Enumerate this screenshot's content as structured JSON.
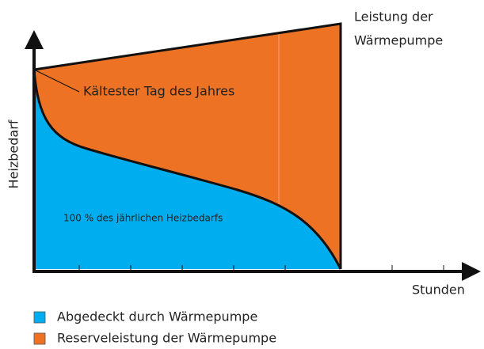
{
  "annotations": {
    "coldest_day": "Kältester Tag des Jahres",
    "capacity_line1": "Leistung der",
    "capacity_line2": "Wärmepumpe",
    "area_label": "100 % des jährlichen Heizbedarfs"
  },
  "axes": {
    "y_label": "Heizbedarf",
    "x_label": "Stunden"
  },
  "legend": [
    {
      "label": "Abgedeckt durch Wärmepumpe",
      "color": "#00aeef"
    },
    {
      "label": "Reserveleistung der Wärmepumpe",
      "color": "#ee7223"
    }
  ]
}
